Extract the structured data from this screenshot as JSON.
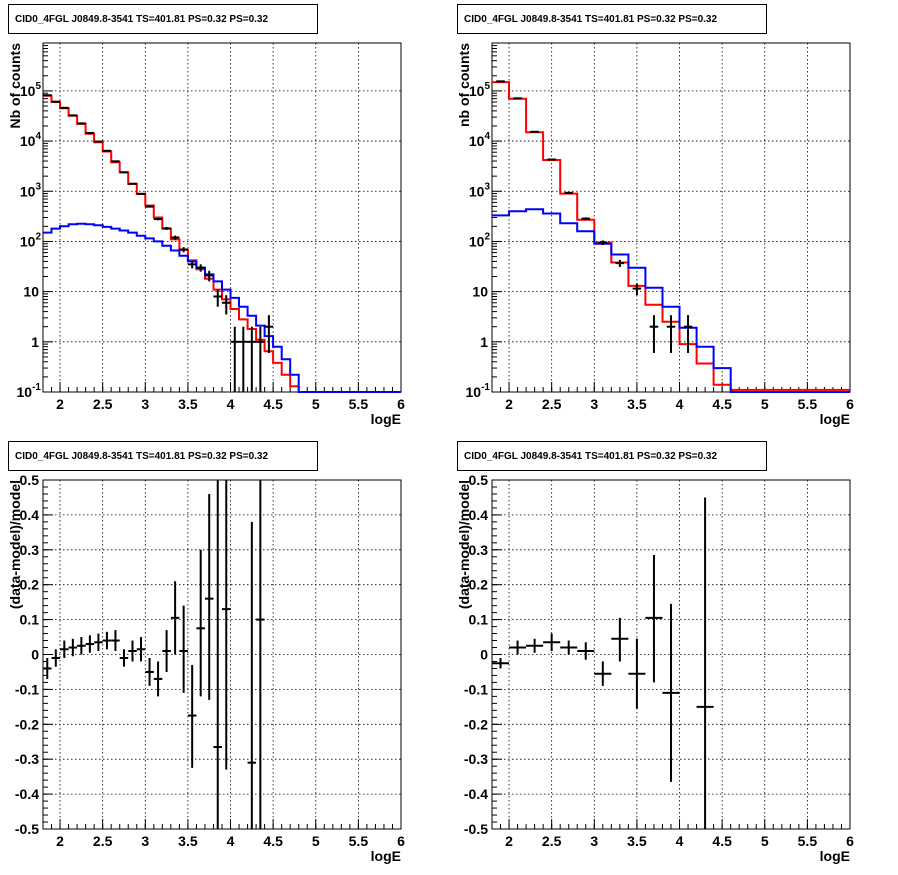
{
  "chart_data": [
    {
      "id": "top-left",
      "type": "step",
      "title": "CID0_4FGL J0849.8-3541 TS=401.81 PS=0.32 PS=0.32",
      "xlabel": "logE",
      "ylabel": "Nb of counts",
      "xlim": [
        1.8,
        6.0
      ],
      "ylim": [
        0.1,
        900000
      ],
      "yscale": "log",
      "grid": true,
      "x_ticks": [
        "2",
        "2.5",
        "3",
        "3.5",
        "4",
        "4.5",
        "5",
        "5.5",
        "6"
      ],
      "y_ticks": [
        "10^-1",
        "1",
        "10",
        "10^2",
        "10^3",
        "10^4",
        "10^5"
      ],
      "series": [
        {
          "color": "#ff0000",
          "bin_width": 0.1,
          "bin_start": 1.8,
          "values": [
            80000,
            60000,
            45000,
            32000,
            22000,
            14000,
            9500,
            6200,
            3800,
            2400,
            1400,
            880,
            520,
            300,
            180,
            110,
            68,
            42,
            28,
            18,
            11,
            7,
            4.5,
            2.8,
            1.8,
            1.1,
            0.65,
            0.38,
            0.22,
            0.13,
            0.09,
            0.09,
            0.09,
            0.09,
            0.09,
            0.09,
            0.09,
            0.09,
            0.09,
            0.09,
            0.09,
            0.09
          ]
        },
        {
          "color": "#0000ff",
          "bin_width": 0.1,
          "bin_start": 1.8,
          "values": [
            150,
            180,
            200,
            220,
            225,
            220,
            210,
            195,
            180,
            165,
            150,
            130,
            115,
            100,
            82,
            66,
            52,
            40,
            30,
            22,
            16,
            11,
            7.5,
            5,
            3.3,
            2.1,
            1.3,
            0.8,
            0.45,
            0.22,
            0.1,
            0.1,
            0.1,
            0.1,
            0.1,
            0.1,
            0.1,
            0.1,
            0.1,
            0.1,
            0.1,
            0.1
          ]
        }
      ],
      "data_points": [
        {
          "x": 1.85,
          "y": 82000,
          "ylo": 81700,
          "yhi": 82300
        },
        {
          "x": 1.95,
          "y": 61000,
          "ylo": 60750,
          "yhi": 61250
        },
        {
          "x": 2.05,
          "y": 46000,
          "ylo": 45790,
          "yhi": 46210
        },
        {
          "x": 2.15,
          "y": 32500,
          "ylo": 32320,
          "yhi": 32680
        },
        {
          "x": 2.25,
          "y": 22500,
          "ylo": 22350,
          "yhi": 22650
        },
        {
          "x": 2.35,
          "y": 14500,
          "ylo": 14380,
          "yhi": 14620
        },
        {
          "x": 2.45,
          "y": 9800,
          "ylo": 9700,
          "yhi": 9900
        },
        {
          "x": 2.55,
          "y": 6400,
          "ylo": 6320,
          "yhi": 6480
        },
        {
          "x": 2.65,
          "y": 3950,
          "ylo": 3890,
          "yhi": 4010
        },
        {
          "x": 2.75,
          "y": 2380,
          "ylo": 2330,
          "yhi": 2430
        },
        {
          "x": 2.85,
          "y": 1410,
          "ylo": 1370,
          "yhi": 1450
        },
        {
          "x": 2.95,
          "y": 890,
          "ylo": 860,
          "yhi": 920
        },
        {
          "x": 3.05,
          "y": 495,
          "ylo": 473,
          "yhi": 517
        },
        {
          "x": 3.15,
          "y": 280,
          "ylo": 263,
          "yhi": 297
        },
        {
          "x": 3.25,
          "y": 182,
          "ylo": 169,
          "yhi": 195
        },
        {
          "x": 3.35,
          "y": 120,
          "ylo": 109,
          "yhi": 131
        },
        {
          "x": 3.45,
          "y": 69,
          "ylo": 61,
          "yhi": 77
        },
        {
          "x": 3.55,
          "y": 35,
          "ylo": 29,
          "yhi": 41
        },
        {
          "x": 3.65,
          "y": 30,
          "ylo": 25,
          "yhi": 35
        },
        {
          "x": 3.75,
          "y": 21,
          "ylo": 16,
          "yhi": 26
        },
        {
          "x": 3.85,
          "y": 8,
          "ylo": 5,
          "yhi": 11
        },
        {
          "x": 3.95,
          "y": 6,
          "ylo": 3.5,
          "yhi": 8.5
        },
        {
          "x": 4.05,
          "y": 1,
          "ylo": 0.09,
          "yhi": 2
        },
        {
          "x": 4.15,
          "y": 1,
          "ylo": 0.09,
          "yhi": 2
        },
        {
          "x": 4.25,
          "y": 1,
          "ylo": 0.09,
          "yhi": 2
        },
        {
          "x": 4.35,
          "y": 1,
          "ylo": 0.09,
          "yhi": 2
        },
        {
          "x": 4.45,
          "y": 2,
          "ylo": 0.6,
          "yhi": 3.4
        }
      ]
    },
    {
      "id": "top-right",
      "type": "step",
      "title": "CID0_4FGL J0849.8-3541 TS=401.81 PS=0.32 PS=0.32",
      "xlabel": "logE",
      "ylabel": "nb of counts",
      "xlim": [
        1.8,
        6.0
      ],
      "ylim": [
        0.1,
        900000
      ],
      "yscale": "log",
      "grid": true,
      "x_ticks": [
        "2",
        "2.5",
        "3",
        "3.5",
        "4",
        "4.5",
        "5",
        "5.5",
        "6"
      ],
      "y_ticks": [
        "10^-1",
        "1",
        "10",
        "10^2",
        "10^3",
        "10^4",
        "10^5"
      ],
      "series": [
        {
          "color": "#ff0000",
          "bin_width": 0.2,
          "bin_start": 1.8,
          "values": [
            150000,
            70000,
            15000,
            4200,
            900,
            270,
            95,
            38,
            13,
            5.5,
            2.5,
            0.9,
            0.37,
            0.14,
            0.11,
            0.11,
            0.11,
            0.11,
            0.11,
            0.11,
            0.11
          ]
        },
        {
          "color": "#0000ff",
          "bin_width": 0.2,
          "bin_start": 1.8,
          "values": [
            330,
            400,
            440,
            360,
            230,
            160,
            90,
            55,
            30,
            12,
            5,
            1.9,
            0.8,
            0.3,
            0.1,
            0.1,
            0.1,
            0.1,
            0.1,
            0.1,
            0.1
          ]
        }
      ],
      "data_points": [
        {
          "x": 1.9,
          "y": 155000,
          "ylo": 154600,
          "yhi": 155400
        },
        {
          "x": 2.1,
          "y": 71000,
          "ylo": 70730,
          "yhi": 71270
        },
        {
          "x": 2.3,
          "y": 15300,
          "ylo": 15180,
          "yhi": 15420
        },
        {
          "x": 2.5,
          "y": 4300,
          "ylo": 4230,
          "yhi": 4370
        },
        {
          "x": 2.7,
          "y": 930,
          "ylo": 900,
          "yhi": 960
        },
        {
          "x": 2.9,
          "y": 285,
          "ylo": 268,
          "yhi": 302
        },
        {
          "x": 3.1,
          "y": 95,
          "ylo": 85,
          "yhi": 105
        },
        {
          "x": 3.3,
          "y": 37,
          "ylo": 31,
          "yhi": 43
        },
        {
          "x": 3.5,
          "y": 11.5,
          "ylo": 8.5,
          "yhi": 14.5
        },
        {
          "x": 3.7,
          "y": 2,
          "ylo": 0.6,
          "yhi": 3.4
        },
        {
          "x": 3.9,
          "y": 2,
          "ylo": 0.6,
          "yhi": 3.4
        },
        {
          "x": 4.1,
          "y": 2,
          "ylo": 0.6,
          "yhi": 3.4
        }
      ]
    },
    {
      "id": "bottom-left",
      "type": "scatter",
      "title": "CID0_4FGL J0849.8-3541 TS=401.81 PS=0.32 PS=0.32",
      "xlabel": "logE",
      "ylabel": "(data-model)/model",
      "xlim": [
        1.8,
        6.0
      ],
      "ylim": [
        -0.5,
        0.5
      ],
      "yscale": "linear",
      "grid": true,
      "x_ticks": [
        "2",
        "2.5",
        "3",
        "3.5",
        "4",
        "4.5",
        "5",
        "5.5",
        "6"
      ],
      "y_ticks": [
        "-0.5",
        "-0.4",
        "-0.3",
        "-0.2",
        "-0.1",
        "0",
        "0.1",
        "0.2",
        "0.3",
        "0.4",
        "0.5"
      ],
      "x_half_width": 0.05,
      "data_points": [
        {
          "x": 1.85,
          "y": -0.04,
          "ylo": -0.07,
          "yhi": -0.01
        },
        {
          "x": 1.95,
          "y": -0.01,
          "ylo": -0.035,
          "yhi": 0.015
        },
        {
          "x": 2.05,
          "y": 0.015,
          "ylo": -0.01,
          "yhi": 0.04
        },
        {
          "x": 2.15,
          "y": 0.02,
          "ylo": -0.005,
          "yhi": 0.045
        },
        {
          "x": 2.25,
          "y": 0.025,
          "ylo": 0.0,
          "yhi": 0.05
        },
        {
          "x": 2.35,
          "y": 0.03,
          "ylo": 0.005,
          "yhi": 0.055
        },
        {
          "x": 2.45,
          "y": 0.035,
          "ylo": 0.01,
          "yhi": 0.06
        },
        {
          "x": 2.55,
          "y": 0.04,
          "ylo": 0.015,
          "yhi": 0.065
        },
        {
          "x": 2.65,
          "y": 0.04,
          "ylo": 0.01,
          "yhi": 0.07
        },
        {
          "x": 2.75,
          "y": -0.01,
          "ylo": -0.035,
          "yhi": 0.015
        },
        {
          "x": 2.85,
          "y": 0.01,
          "ylo": -0.02,
          "yhi": 0.04
        },
        {
          "x": 2.95,
          "y": 0.015,
          "ylo": -0.02,
          "yhi": 0.05
        },
        {
          "x": 3.05,
          "y": -0.05,
          "ylo": -0.09,
          "yhi": -0.01
        },
        {
          "x": 3.15,
          "y": -0.07,
          "ylo": -0.12,
          "yhi": -0.02
        },
        {
          "x": 3.25,
          "y": 0.01,
          "ylo": -0.05,
          "yhi": 0.07
        },
        {
          "x": 3.35,
          "y": 0.105,
          "ylo": 0.0,
          "yhi": 0.21
        },
        {
          "x": 3.45,
          "y": 0.01,
          "ylo": -0.11,
          "yhi": 0.14
        },
        {
          "x": 3.55,
          "y": -0.175,
          "ylo": -0.325,
          "yhi": -0.03
        },
        {
          "x": 3.65,
          "y": 0.075,
          "ylo": -0.12,
          "yhi": 0.3
        },
        {
          "x": 3.75,
          "y": 0.16,
          "ylo": -0.13,
          "yhi": 0.46
        },
        {
          "x": 3.85,
          "y": -0.265,
          "ylo": -0.5,
          "yhi": 0.5
        },
        {
          "x": 3.95,
          "y": 0.13,
          "ylo": -0.33,
          "yhi": 0.5
        },
        {
          "x": 4.25,
          "y": -0.31,
          "ylo": -0.5,
          "yhi": 0.38
        },
        {
          "x": 4.35,
          "y": 0.1,
          "ylo": -0.5,
          "yhi": 0.5
        }
      ]
    },
    {
      "id": "bottom-right",
      "type": "scatter",
      "title": "CID0_4FGL J0849.8-3541 TS=401.81 PS=0.32 PS=0.32",
      "xlabel": "logE",
      "ylabel": "(data-model)/model",
      "xlim": [
        1.8,
        6.0
      ],
      "ylim": [
        -0.5,
        0.5
      ],
      "yscale": "linear",
      "grid": true,
      "x_ticks": [
        "2",
        "2.5",
        "3",
        "3.5",
        "4",
        "4.5",
        "5",
        "5.5",
        "6"
      ],
      "y_ticks": [
        "-0.5",
        "-0.4",
        "-0.3",
        "-0.2",
        "-0.1",
        "0",
        "0.1",
        "0.2",
        "0.3",
        "0.4",
        "0.5"
      ],
      "x_half_width": 0.1,
      "data_points": [
        {
          "x": 1.9,
          "y": -0.025,
          "ylo": -0.04,
          "yhi": -0.01
        },
        {
          "x": 2.1,
          "y": 0.02,
          "ylo": 0.0,
          "yhi": 0.04
        },
        {
          "x": 2.3,
          "y": 0.025,
          "ylo": 0.005,
          "yhi": 0.045
        },
        {
          "x": 2.5,
          "y": 0.035,
          "ylo": 0.01,
          "yhi": 0.06
        },
        {
          "x": 2.7,
          "y": 0.02,
          "ylo": 0.0,
          "yhi": 0.04
        },
        {
          "x": 2.9,
          "y": 0.01,
          "ylo": -0.015,
          "yhi": 0.035
        },
        {
          "x": 3.1,
          "y": -0.055,
          "ylo": -0.09,
          "yhi": -0.02
        },
        {
          "x": 3.3,
          "y": 0.045,
          "ylo": -0.02,
          "yhi": 0.105
        },
        {
          "x": 3.5,
          "y": -0.055,
          "ylo": -0.155,
          "yhi": 0.045
        },
        {
          "x": 3.7,
          "y": 0.105,
          "ylo": -0.08,
          "yhi": 0.285
        },
        {
          "x": 3.9,
          "y": -0.11,
          "ylo": -0.365,
          "yhi": 0.145
        },
        {
          "x": 4.3,
          "y": -0.15,
          "ylo": -0.5,
          "yhi": 0.45
        }
      ]
    }
  ]
}
